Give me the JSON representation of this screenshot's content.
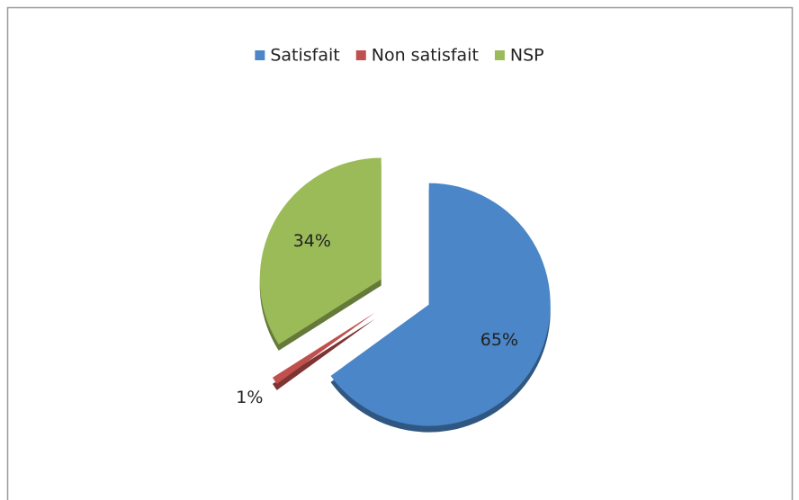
{
  "chart_data": {
    "type": "pie",
    "categories": [
      "Satisfait",
      "Non satisfait",
      "NSP"
    ],
    "values": [
      65,
      1,
      34
    ],
    "value_labels": [
      "65%",
      "1%",
      "34%"
    ],
    "colors": [
      "#4a86c8",
      "#c0504d",
      "#9bbb59"
    ],
    "legend": "top"
  }
}
